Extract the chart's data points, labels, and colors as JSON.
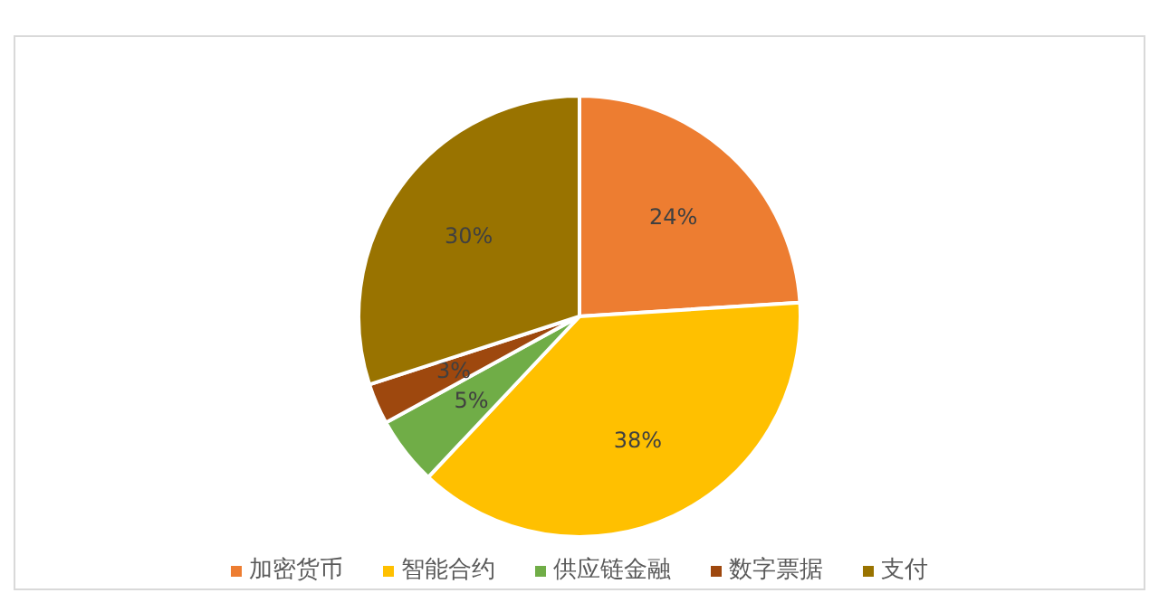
{
  "chart_data": {
    "type": "pie",
    "categories": [
      "加密货币",
      "智能合约",
      "供应链金融",
      "数字票据",
      "支付"
    ],
    "values": [
      24,
      38,
      5,
      3,
      30
    ],
    "colors": [
      "#ed7d31",
      "#ffc000",
      "#70ad47",
      "#9e480e",
      "#997300"
    ],
    "value_labels": [
      "24%",
      "38%",
      "5%",
      "3%",
      "30%"
    ],
    "legend": "bottom"
  }
}
